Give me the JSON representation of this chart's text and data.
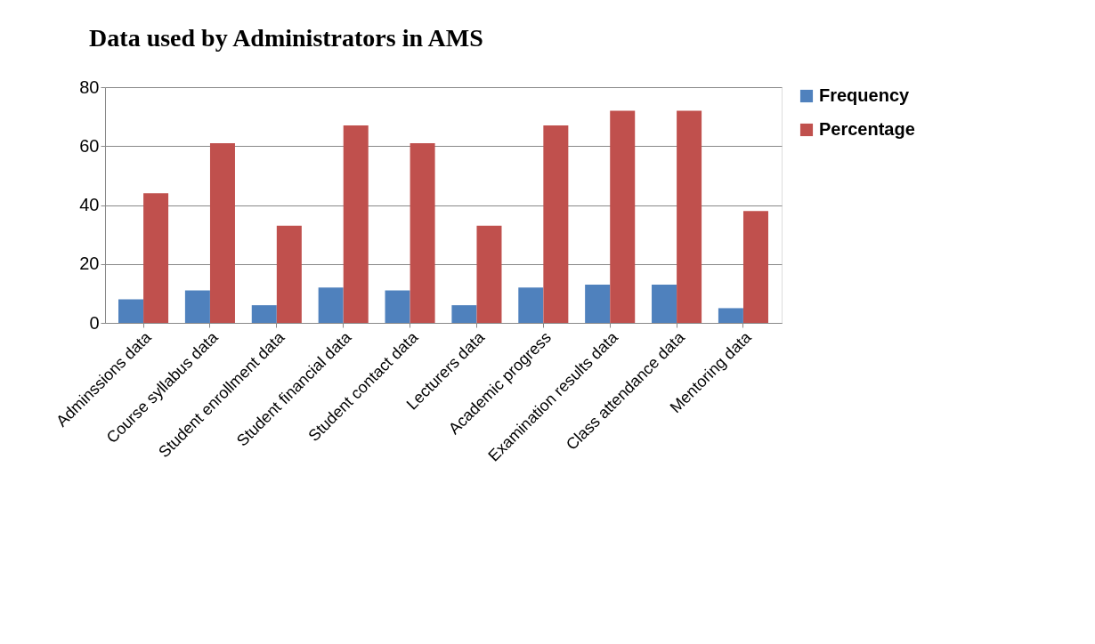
{
  "chart_data": {
    "type": "bar",
    "title": "Data used by Administrators in AMS",
    "categories": [
      "Adminssions data",
      "Course syllabus data",
      "Student enrollment data",
      "Student financial data",
      "Student contact data",
      "Lecturers data",
      "Academic progress",
      "Examination results data",
      "Class attendance data",
      "Mentoring data"
    ],
    "series": [
      {
        "name": "Frequency",
        "color": "#4f81bd",
        "values": [
          8,
          11,
          6,
          12,
          11,
          6,
          12,
          13,
          13,
          5
        ]
      },
      {
        "name": "Percentage",
        "color": "#c0504d",
        "values": [
          44,
          61,
          33,
          67,
          61,
          33,
          67,
          72,
          72,
          38
        ]
      }
    ],
    "ylim": [
      0,
      80
    ],
    "yticks": [
      0,
      20,
      40,
      60,
      80
    ],
    "grid": "y",
    "legend": "right"
  }
}
